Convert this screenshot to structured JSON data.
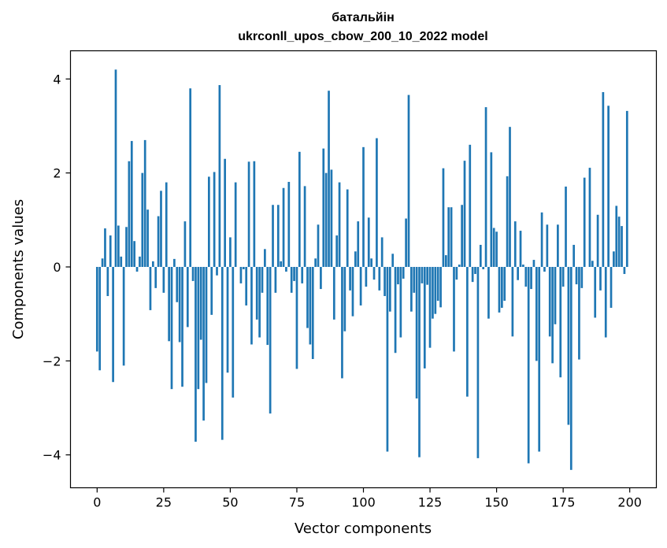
{
  "chart_data": {
    "type": "bar",
    "title": "батальйін",
    "subtitle": "ukrconll_upos_cbow_200_10_2022 model",
    "xlabel": "Vector components",
    "ylabel": "Components values",
    "xlim": [
      -10,
      210
    ],
    "ylim": [
      -4.7,
      4.6
    ],
    "xticks": [
      0,
      25,
      50,
      75,
      100,
      125,
      150,
      175,
      200
    ],
    "yticks": [
      -4,
      -2,
      0,
      2,
      4
    ],
    "ytick_labels": [
      "−4",
      "−2",
      "0",
      "2",
      "4"
    ],
    "grid": false,
    "bar_color": "#1f77b4",
    "values": [
      -1.8,
      -2.2,
      0.18,
      0.82,
      -0.62,
      0.67,
      -2.45,
      4.2,
      0.88,
      0.22,
      -2.1,
      0.85,
      2.25,
      2.68,
      0.55,
      -0.1,
      0.22,
      2.0,
      2.7,
      1.22,
      -0.92,
      0.12,
      -0.45,
      1.08,
      1.62,
      -0.55,
      1.8,
      -1.58,
      -2.6,
      0.17,
      -0.75,
      -1.6,
      -2.55,
      0.97,
      -1.28,
      3.8,
      -0.3,
      -3.72,
      -2.6,
      -1.55,
      -3.27,
      -2.47,
      1.92,
      -1.02,
      2.02,
      -0.18,
      3.87,
      -3.68,
      2.3,
      -2.25,
      0.63,
      -2.78,
      1.8,
      -0.0,
      -0.35,
      -0.05,
      -0.82,
      2.24,
      -1.65,
      2.25,
      -1.12,
      -1.5,
      -0.55,
      0.38,
      -1.66,
      -3.12,
      1.32,
      -0.55,
      1.32,
      0.12,
      1.68,
      -0.1,
      1.81,
      -0.55,
      -0.3,
      -2.17,
      2.45,
      -0.35,
      1.72,
      -1.3,
      -1.65,
      -1.96,
      0.18,
      0.9,
      -0.47,
      2.52,
      2.0,
      3.75,
      2.07,
      -1.12,
      0.67,
      1.8,
      -2.37,
      -1.37,
      1.65,
      -0.5,
      -1.05,
      0.33,
      0.97,
      -0.82,
      2.55,
      -0.42,
      1.05,
      0.18,
      -0.27,
      2.74,
      -0.5,
      0.63,
      -0.62,
      -3.93,
      -0.95,
      0.28,
      -1.83,
      -0.37,
      -1.5,
      -0.25,
      1.03,
      3.66,
      -0.95,
      -0.55,
      -2.8,
      -4.05,
      -0.35,
      -2.16,
      -0.38,
      -1.72,
      -1.1,
      -1.0,
      -0.72,
      -0.86,
      2.1,
      0.25,
      1.27,
      1.27,
      -1.8,
      -0.27,
      0.05,
      1.32,
      2.26,
      -2.76,
      2.6,
      -0.32,
      -0.15,
      -4.07,
      0.47,
      -0.05,
      3.4,
      -1.1,
      2.44,
      0.83,
      0.75,
      -0.97,
      -0.87,
      -0.72,
      1.93,
      2.98,
      -1.48,
      0.97,
      -0.28,
      0.77,
      0.05,
      -0.42,
      -4.18,
      -0.47,
      0.15,
      -2.0,
      -3.93,
      1.16,
      -0.1,
      0.9,
      -1.48,
      -2.05,
      -1.22,
      0.9,
      -2.35,
      -0.42,
      1.71,
      -3.36,
      -4.32,
      0.47,
      -0.37,
      -1.97,
      -0.45,
      1.9,
      0.0,
      2.11,
      0.13,
      -1.08,
      1.11,
      -0.5,
      3.72,
      -1.5,
      3.43,
      -0.87,
      0.33,
      1.3,
      1.07,
      0.87,
      -0.15,
      3.32
    ]
  }
}
